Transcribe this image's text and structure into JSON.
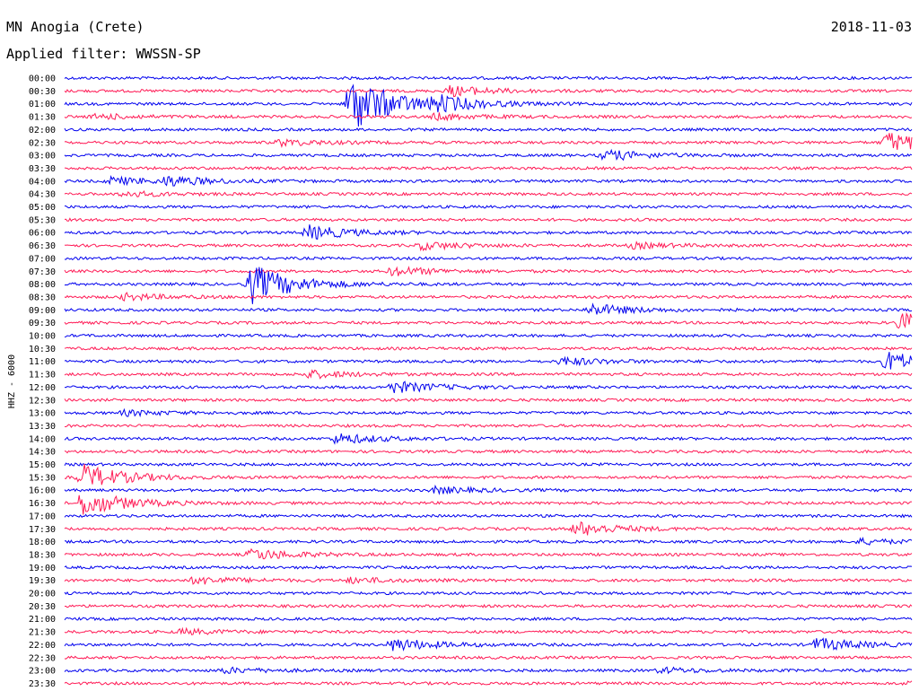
{
  "header": {
    "station": "MN Anogia (Crete)",
    "filter_label": "Applied filter: WWSSN-SP",
    "date": "2018-11-03"
  },
  "chart_data": {
    "type": "line",
    "title": "MN Anogia (Crete)",
    "subtitle": "Applied filter: WWSSN-SP",
    "ylabel": "HHZ - 6000",
    "xlabel": "",
    "colors": [
      "#0000ee",
      "#ff1a55"
    ],
    "trace_labels": [
      "00:00",
      "00:30",
      "01:00",
      "01:30",
      "02:00",
      "02:30",
      "03:00",
      "03:30",
      "04:00",
      "04:30",
      "05:00",
      "05:30",
      "06:00",
      "06:30",
      "07:00",
      "07:30",
      "08:00",
      "08:30",
      "09:00",
      "09:30",
      "10:00",
      "10:30",
      "11:00",
      "11:30",
      "12:00",
      "12:30",
      "13:00",
      "13:30",
      "14:00",
      "14:30",
      "15:00",
      "15:30",
      "16:00",
      "16:30",
      "17:00",
      "17:30",
      "18:00",
      "18:30",
      "19:00",
      "19:30",
      "20:00",
      "20:30",
      "21:00",
      "21:30",
      "22:00",
      "22:30",
      "23:00",
      "23:30"
    ],
    "trace_duration_minutes": 30,
    "xlim_minutes": [
      0,
      30
    ],
    "events": [
      {
        "trace": "00:30",
        "t": 13.5,
        "amp": 0.8
      },
      {
        "trace": "01:00",
        "t": 10.0,
        "amp": 4.5
      },
      {
        "trace": "01:00",
        "t": 13.0,
        "amp": 1.0
      },
      {
        "trace": "01:30",
        "t": 1.0,
        "amp": 0.4
      },
      {
        "trace": "01:30",
        "t": 13.0,
        "amp": 0.5
      },
      {
        "trace": "02:30",
        "t": 7.5,
        "amp": 0.5
      },
      {
        "trace": "02:30",
        "t": 29.0,
        "amp": 1.6
      },
      {
        "trace": "03:00",
        "t": 19.0,
        "amp": 0.8
      },
      {
        "trace": "04:00",
        "t": 1.5,
        "amp": 0.6
      },
      {
        "trace": "04:00",
        "t": 3.5,
        "amp": 0.7
      },
      {
        "trace": "04:30",
        "t": 2.0,
        "amp": 0.4
      },
      {
        "trace": "06:00",
        "t": 8.5,
        "amp": 1.1
      },
      {
        "trace": "06:30",
        "t": 12.5,
        "amp": 0.6
      },
      {
        "trace": "06:30",
        "t": 20.0,
        "amp": 0.4
      },
      {
        "trace": "07:30",
        "t": 11.5,
        "amp": 0.7
      },
      {
        "trace": "08:00",
        "t": 6.5,
        "amp": 3.0
      },
      {
        "trace": "08:30",
        "t": 2.0,
        "amp": 0.5
      },
      {
        "trace": "09:00",
        "t": 18.5,
        "amp": 0.9
      },
      {
        "trace": "09:30",
        "t": 29.5,
        "amp": 1.5
      },
      {
        "trace": "11:00",
        "t": 17.5,
        "amp": 0.6
      },
      {
        "trace": "11:00",
        "t": 29.0,
        "amp": 1.5
      },
      {
        "trace": "11:30",
        "t": 8.5,
        "amp": 0.6
      },
      {
        "trace": "12:00",
        "t": 11.5,
        "amp": 0.9
      },
      {
        "trace": "13:00",
        "t": 2.0,
        "amp": 0.4
      },
      {
        "trace": "14:00",
        "t": 9.5,
        "amp": 0.8
      },
      {
        "trace": "15:30",
        "t": 0.5,
        "amp": 2.0
      },
      {
        "trace": "16:00",
        "t": 13.0,
        "amp": 0.5
      },
      {
        "trace": "16:30",
        "t": 0.5,
        "amp": 2.0
      },
      {
        "trace": "17:30",
        "t": 18.0,
        "amp": 1.1
      },
      {
        "trace": "18:00",
        "t": 28.0,
        "amp": 0.4
      },
      {
        "trace": "18:30",
        "t": 6.5,
        "amp": 0.9
      },
      {
        "trace": "19:30",
        "t": 4.5,
        "amp": 0.6
      },
      {
        "trace": "19:30",
        "t": 10.0,
        "amp": 0.4
      },
      {
        "trace": "21:30",
        "t": 4.0,
        "amp": 0.4
      },
      {
        "trace": "22:00",
        "t": 11.5,
        "amp": 1.0
      },
      {
        "trace": "22:00",
        "t": 26.5,
        "amp": 1.0
      },
      {
        "trace": "23:00",
        "t": 5.5,
        "amp": 0.4
      },
      {
        "trace": "23:00",
        "t": 21.0,
        "amp": 0.4
      },
      {
        "trace": "23:30",
        "t": 29.8,
        "amp": 0.5
      }
    ]
  }
}
